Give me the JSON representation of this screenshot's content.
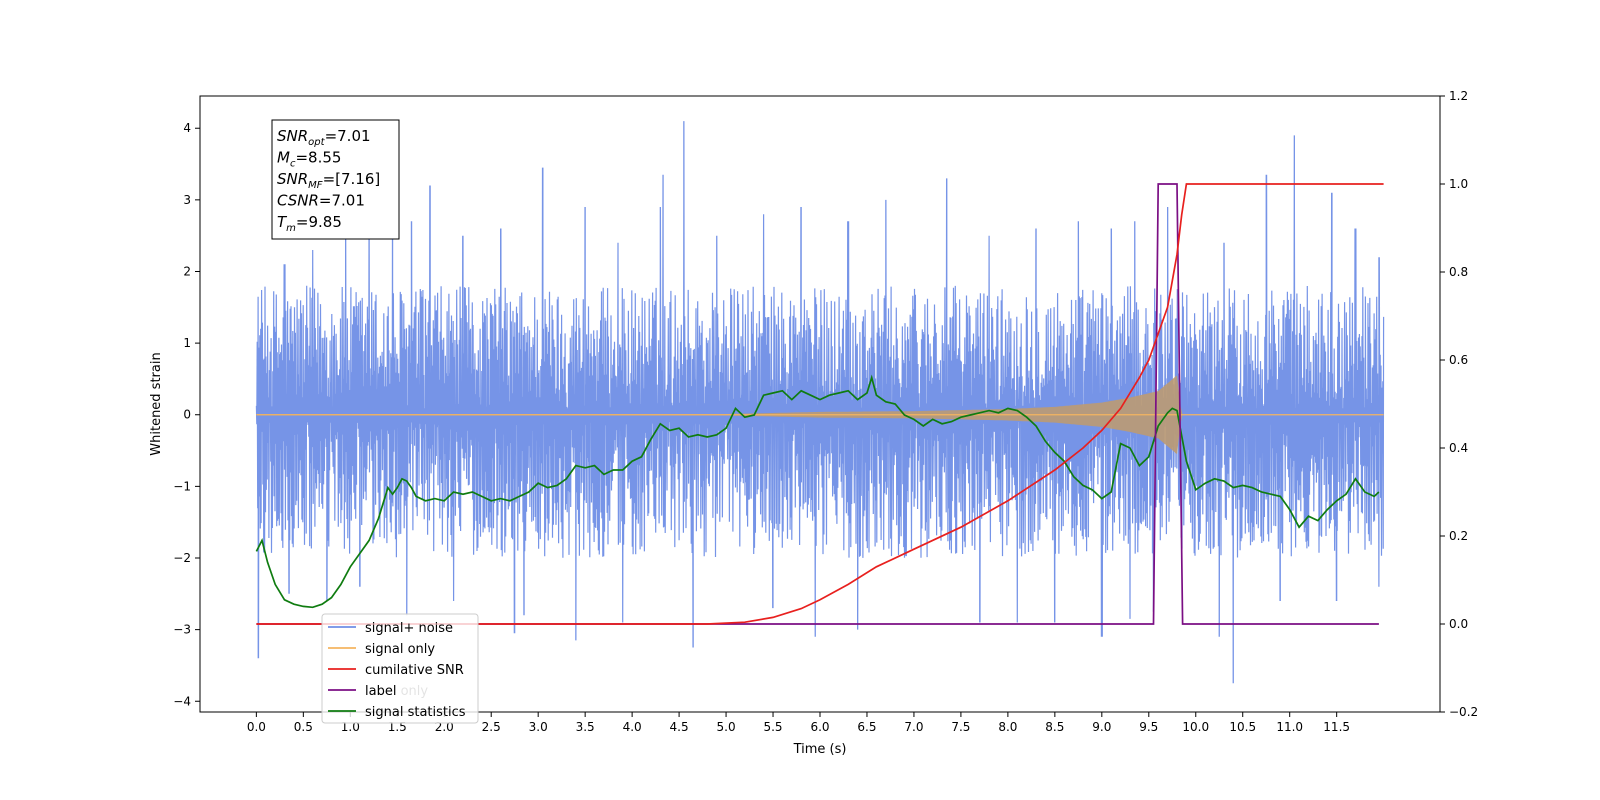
{
  "chart_data": {
    "type": "line",
    "xlabel": "Time (s)",
    "ylabel": "Whitened strain",
    "xlim": [
      -0.6,
      12.6
    ],
    "ylim": [
      -4.15,
      4.45
    ],
    "y2lim": [
      -0.2,
      1.2
    ],
    "x_ticks": [
      "0.0",
      "0.5",
      "1.0",
      "1.5",
      "2.0",
      "2.5",
      "3.0",
      "3.5",
      "4.0",
      "4.5",
      "5.0",
      "5.5",
      "6.0",
      "6.5",
      "7.0",
      "7.5",
      "8.0",
      "8.5",
      "9.0",
      "9.5",
      "10.0",
      "10.5",
      "11.0",
      "11.5"
    ],
    "y_ticks": [
      "4",
      "3",
      "2",
      "1",
      "0",
      "−1",
      "−2",
      "−3",
      "−4"
    ],
    "y2_ticks": [
      "1.2",
      "1.0",
      "0.8",
      "0.6",
      "0.4",
      "0.2",
      "0.0",
      "−0.2"
    ],
    "annotation": [
      {
        "main": "SNR",
        "sub": "opt",
        "value": "=7.01"
      },
      {
        "main": "M",
        "sub": "c",
        "value": "=8.55"
      },
      {
        "main": "SNR",
        "sub": "MF",
        "value": "=[7.16]"
      },
      {
        "main": "CSNR",
        "sub": "",
        "value": "=7.01"
      },
      {
        "main": "T",
        "sub": "m",
        "value": "=9.85"
      }
    ],
    "legend": {
      "location": "lower left",
      "entries": [
        "signal+ noise",
        "signal only",
        "cumilative SNR",
        "label",
        "signal statistics"
      ],
      "hidden_text": "label only"
    },
    "colors": {
      "noise": "#6f8ee6",
      "signal": "#f5b461",
      "signal_fill": "#bd9a72",
      "csnr": "#e8201e",
      "label": "#7b0f84",
      "stats": "#0f7c10"
    },
    "series": [
      {
        "name": "signal+ noise",
        "axis": "left",
        "style": "dense noise, approx envelope",
        "t_range": [
          0.0,
          12.0
        ],
        "typical_upper": 1.8,
        "typical_lower": -2.0,
        "peaks": [
          [
            0.05,
            1.2
          ],
          [
            0.3,
            2.1
          ],
          [
            0.6,
            2.3
          ],
          [
            0.95,
            2.5
          ],
          [
            1.2,
            3.3
          ],
          [
            1.45,
            2.8
          ],
          [
            1.65,
            2.7
          ],
          [
            1.85,
            3.2
          ],
          [
            2.2,
            2.5
          ],
          [
            2.6,
            2.6
          ],
          [
            3.05,
            3.45
          ],
          [
            3.5,
            2.9
          ],
          [
            3.85,
            2.4
          ],
          [
            4.3,
            2.9
          ],
          [
            4.33,
            3.35
          ],
          [
            4.55,
            4.1
          ],
          [
            4.9,
            2.5
          ],
          [
            5.4,
            2.8
          ],
          [
            5.8,
            2.9
          ],
          [
            6.3,
            2.7
          ],
          [
            6.7,
            3.0
          ],
          [
            7.35,
            3.3
          ],
          [
            7.8,
            2.5
          ],
          [
            8.3,
            2.6
          ],
          [
            8.75,
            2.7
          ],
          [
            9.1,
            2.6
          ],
          [
            9.35,
            2.7
          ],
          [
            9.7,
            2.9
          ],
          [
            10.3,
            2.4
          ],
          [
            10.75,
            3.35
          ],
          [
            11.05,
            3.9
          ],
          [
            11.45,
            3.1
          ],
          [
            11.7,
            2.6
          ],
          [
            11.95,
            2.2
          ]
        ],
        "troughs": [
          [
            0.02,
            -3.4
          ],
          [
            0.35,
            -2.5
          ],
          [
            0.75,
            -2.6
          ],
          [
            1.1,
            -2.4
          ],
          [
            1.6,
            -2.8
          ],
          [
            2.1,
            -2.6
          ],
          [
            2.75,
            -3.05
          ],
          [
            2.85,
            -2.8
          ],
          [
            3.4,
            -3.15
          ],
          [
            3.9,
            -2.9
          ],
          [
            4.65,
            -3.25
          ],
          [
            5.5,
            -2.7
          ],
          [
            5.95,
            -3.1
          ],
          [
            6.4,
            -3.0
          ],
          [
            7.7,
            -2.9
          ],
          [
            8.1,
            -2.9
          ],
          [
            8.5,
            -2.9
          ],
          [
            9.0,
            -3.1
          ],
          [
            9.3,
            -2.85
          ],
          [
            9.55,
            -2.75
          ],
          [
            10.25,
            -3.1
          ],
          [
            10.4,
            -3.75
          ],
          [
            10.9,
            -2.6
          ],
          [
            11.5,
            -2.6
          ],
          [
            11.95,
            -2.4
          ]
        ]
      },
      {
        "name": "signal only",
        "axis": "left",
        "style": "chirp, flat then growing amplitude",
        "t_range": [
          0.0,
          12.0
        ],
        "amplitude_envelope": [
          [
            0.0,
            0.01
          ],
          [
            5.0,
            0.01
          ],
          [
            6.0,
            0.04
          ],
          [
            7.0,
            0.05
          ],
          [
            8.0,
            0.08
          ],
          [
            8.5,
            0.11
          ],
          [
            9.0,
            0.17
          ],
          [
            9.3,
            0.24
          ],
          [
            9.6,
            0.33
          ],
          [
            9.8,
            0.55
          ],
          [
            9.85,
            0.0
          ],
          [
            12.0,
            0.0
          ]
        ]
      },
      {
        "name": "cumilative SNR",
        "axis": "right",
        "x": [
          0.0,
          4.8,
          5.2,
          5.5,
          5.8,
          6.0,
          6.3,
          6.6,
          7.0,
          7.5,
          8.0,
          8.5,
          8.8,
          9.0,
          9.2,
          9.4,
          9.5,
          9.6,
          9.7,
          9.75,
          9.8,
          9.85,
          9.9,
          12.0
        ],
        "y": [
          0.0,
          0.0,
          0.004,
          0.015,
          0.035,
          0.055,
          0.09,
          0.13,
          0.17,
          0.22,
          0.28,
          0.35,
          0.4,
          0.44,
          0.49,
          0.56,
          0.6,
          0.66,
          0.72,
          0.78,
          0.84,
          0.93,
          1.0,
          1.0
        ]
      },
      {
        "name": "label",
        "axis": "right",
        "x": [
          0.0,
          9.55,
          9.6,
          9.8,
          9.86,
          11.95
        ],
        "y": [
          0.0,
          0.0,
          1.0,
          1.0,
          0.0,
          0.0
        ]
      },
      {
        "name": "signal statistics",
        "axis": "right",
        "x": [
          0.0,
          0.06,
          0.12,
          0.2,
          0.3,
          0.4,
          0.5,
          0.6,
          0.7,
          0.8,
          0.9,
          1.0,
          1.1,
          1.2,
          1.3,
          1.4,
          1.45,
          1.5,
          1.55,
          1.6,
          1.65,
          1.7,
          1.8,
          1.9,
          2.0,
          2.1,
          2.2,
          2.3,
          2.4,
          2.5,
          2.6,
          2.7,
          2.8,
          2.9,
          3.0,
          3.1,
          3.2,
          3.3,
          3.4,
          3.5,
          3.6,
          3.7,
          3.8,
          3.9,
          4.0,
          4.1,
          4.2,
          4.3,
          4.4,
          4.5,
          4.6,
          4.7,
          4.8,
          4.9,
          5.0,
          5.1,
          5.2,
          5.3,
          5.4,
          5.5,
          5.6,
          5.7,
          5.8,
          5.9,
          6.0,
          6.1,
          6.2,
          6.3,
          6.4,
          6.5,
          6.55,
          6.6,
          6.7,
          6.8,
          6.9,
          7.0,
          7.1,
          7.2,
          7.3,
          7.4,
          7.5,
          7.6,
          7.7,
          7.8,
          7.9,
          8.0,
          8.1,
          8.2,
          8.3,
          8.4,
          8.5,
          8.6,
          8.7,
          8.8,
          8.9,
          9.0,
          9.1,
          9.2,
          9.3,
          9.4,
          9.5,
          9.6,
          9.7,
          9.75,
          9.8,
          9.9,
          10.0,
          10.1,
          10.2,
          10.3,
          10.4,
          10.5,
          10.6,
          10.7,
          10.8,
          10.9,
          11.0,
          11.1,
          11.2,
          11.3,
          11.4,
          11.5,
          11.6,
          11.7,
          11.8,
          11.9,
          11.95
        ],
        "y": [
          0.165,
          0.19,
          0.14,
          0.09,
          0.055,
          0.045,
          0.04,
          0.038,
          0.045,
          0.06,
          0.09,
          0.13,
          0.16,
          0.19,
          0.24,
          0.31,
          0.295,
          0.31,
          0.33,
          0.325,
          0.31,
          0.29,
          0.28,
          0.285,
          0.28,
          0.3,
          0.295,
          0.3,
          0.29,
          0.28,
          0.285,
          0.28,
          0.29,
          0.3,
          0.32,
          0.31,
          0.315,
          0.33,
          0.36,
          0.355,
          0.36,
          0.34,
          0.35,
          0.35,
          0.37,
          0.38,
          0.42,
          0.455,
          0.44,
          0.445,
          0.425,
          0.43,
          0.425,
          0.43,
          0.445,
          0.49,
          0.47,
          0.475,
          0.52,
          0.525,
          0.53,
          0.51,
          0.53,
          0.52,
          0.51,
          0.52,
          0.525,
          0.53,
          0.51,
          0.525,
          0.56,
          0.52,
          0.505,
          0.5,
          0.475,
          0.465,
          0.45,
          0.465,
          0.455,
          0.46,
          0.47,
          0.475,
          0.48,
          0.485,
          0.48,
          0.49,
          0.485,
          0.47,
          0.45,
          0.415,
          0.39,
          0.37,
          0.335,
          0.315,
          0.305,
          0.285,
          0.3,
          0.41,
          0.4,
          0.36,
          0.38,
          0.45,
          0.48,
          0.49,
          0.485,
          0.37,
          0.305,
          0.32,
          0.33,
          0.325,
          0.31,
          0.315,
          0.31,
          0.3,
          0.295,
          0.29,
          0.26,
          0.22,
          0.245,
          0.235,
          0.26,
          0.28,
          0.295,
          0.33,
          0.3,
          0.29,
          0.3
        ]
      }
    ]
  }
}
